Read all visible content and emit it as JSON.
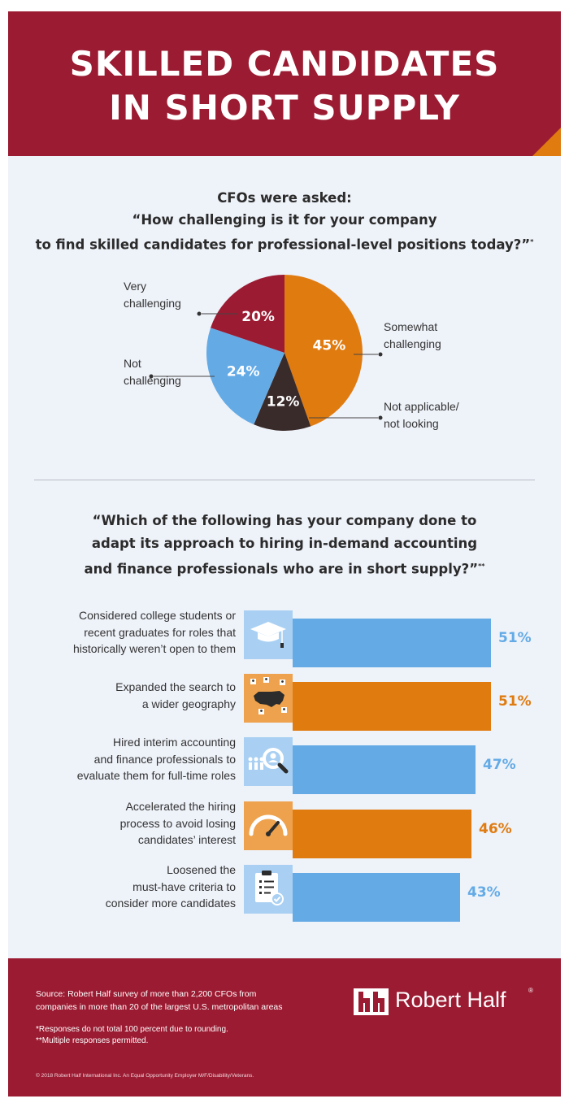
{
  "header": {
    "title": "SKILLED CANDIDATES\nIN SHORT SUPPLY"
  },
  "question1": {
    "line1": "CFOs were asked:",
    "line2": "“How challenging is it for your company",
    "line3": "to find skilled candidates for professional-level positions today?”",
    "footnote_mark": "*"
  },
  "question2": {
    "line1": "“Which of the following has your company done to",
    "line2": "adapt its approach to hiring in-demand accounting",
    "line3": "and finance professionals who are in short supply?”",
    "footnote_mark": "**"
  },
  "colors": {
    "crimson": "#9b1b32",
    "orange": "#e07b10",
    "blue": "#64abe6",
    "dark": "#3a2b2b",
    "orange_icon": "#eea24d",
    "blue_icon": "#a9d0f2"
  },
  "chart_data": [
    {
      "type": "pie",
      "title": "",
      "slices": [
        {
          "label": "Somewhat challenging",
          "label_lines": [
            "Somewhat",
            "challenging"
          ],
          "value": 45,
          "value_label": "45%",
          "color": "#e07b10"
        },
        {
          "label": "Not applicable/ not looking",
          "label_lines": [
            "Not applicable/",
            "not looking"
          ],
          "value": 12,
          "value_label": "12%",
          "color": "#3a2b2b"
        },
        {
          "label": "Not challenging",
          "label_lines": [
            "Not",
            "challenging"
          ],
          "value": 24,
          "value_label": "24%",
          "color": "#64abe6"
        },
        {
          "label": "Very challenging",
          "label_lines": [
            "Very",
            "challenging"
          ],
          "value": 20,
          "value_label": "20%",
          "color": "#9b1b32"
        }
      ]
    },
    {
      "type": "bar",
      "orientation": "horizontal",
      "title": "",
      "xlim": [
        0,
        51
      ],
      "bars": [
        {
          "label_lines": [
            "Considered college students or",
            "recent graduates for roles that",
            "historically weren’t open to them"
          ],
          "value": 51,
          "value_label": "51%",
          "color": "#64abe6",
          "icon": "graduation-cap-icon"
        },
        {
          "label_lines": [
            "Expanded the search to",
            "a wider geography"
          ],
          "value": 51,
          "value_label": "51%",
          "color": "#e07b10",
          "icon": "us-map-icon"
        },
        {
          "label_lines": [
            "Hired interim accounting",
            "and finance professionals to",
            "evaluate them for full-time roles"
          ],
          "value": 47,
          "value_label": "47%",
          "color": "#64abe6",
          "icon": "people-search-icon"
        },
        {
          "label_lines": [
            "Accelerated the hiring",
            "process to avoid losing",
            "candidates’ interest"
          ],
          "value": 46,
          "value_label": "46%",
          "color": "#e07b10",
          "icon": "speedometer-icon"
        },
        {
          "label_lines": [
            "Loosened the",
            "must-have criteria to",
            "consider more candidates"
          ],
          "value": 43,
          "value_label": "43%",
          "color": "#64abe6",
          "icon": "clipboard-check-icon"
        }
      ]
    }
  ],
  "footer": {
    "source_line1": "Source: Robert Half survey of more than 2,200 CFOs from",
    "source_line2": "companies in more than 20 of the largest U.S. metropolitan areas",
    "note1": "*Responses do not total 100 percent due to rounding.",
    "note2": "**Multiple responses permitted.",
    "copyright": "© 2018 Robert Half International Inc. An Equal Opportunity Employer M/F/Disability/Veterans.",
    "logo_text": "Robert Half",
    "logo_mark": "®"
  }
}
